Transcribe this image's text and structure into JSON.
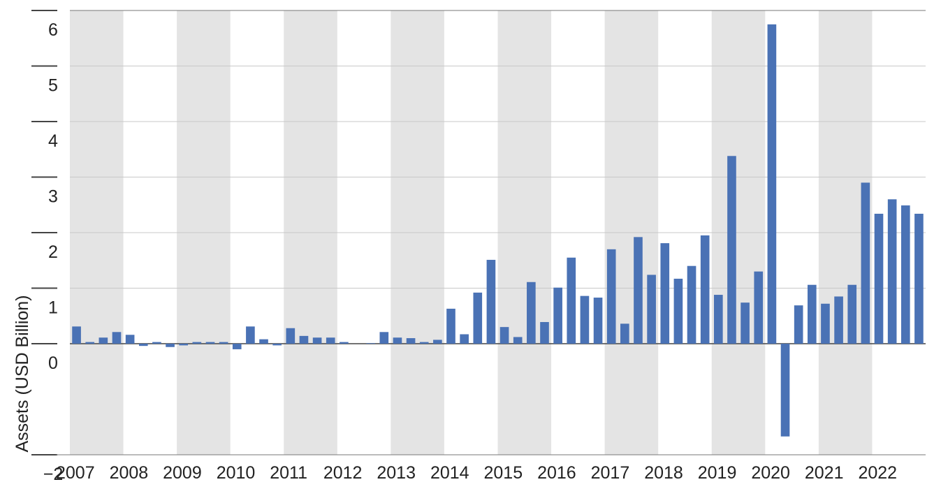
{
  "chart_data": {
    "type": "bar",
    "y_label": "Assets (USD Billion)",
    "categories": [
      "2007",
      null,
      null,
      null,
      "2008",
      null,
      null,
      null,
      "2009",
      null,
      null,
      null,
      "2010",
      null,
      null,
      null,
      "2011",
      null,
      null,
      null,
      "2012",
      null,
      null,
      null,
      "2013",
      null,
      null,
      null,
      "2014",
      null,
      null,
      null,
      "2015",
      null,
      null,
      null,
      "2016",
      null,
      null,
      null,
      "2017",
      null,
      null,
      null,
      "2018",
      null,
      null,
      null,
      "2019",
      null,
      null,
      null,
      "2020",
      null,
      null,
      null,
      "2021",
      null,
      null,
      null,
      "2022",
      null,
      null,
      null
    ],
    "values": [
      0.31,
      0.03,
      0.11,
      0.21,
      0.16,
      -0.04,
      0.03,
      -0.06,
      -0.03,
      0.03,
      0.03,
      0.03,
      -0.1,
      0.31,
      0.08,
      -0.03,
      0.28,
      0.14,
      0.11,
      0.11,
      0.03,
      0.0,
      0.01,
      0.21,
      0.11,
      0.1,
      0.03,
      0.07,
      0.63,
      0.17,
      0.92,
      1.51,
      0.3,
      0.12,
      1.11,
      0.39,
      1.01,
      1.55,
      0.86,
      0.83,
      1.7,
      0.36,
      1.92,
      1.24,
      1.81,
      1.17,
      1.4,
      1.95,
      0.88,
      3.38,
      0.74,
      1.3,
      5.75,
      -1.67,
      0.69,
      1.06,
      0.72,
      0.85,
      1.06,
      2.9,
      2.34,
      2.6,
      2.49,
      2.34
    ],
    "color": "#4a72b5",
    "ylim": [
      -2,
      6
    ],
    "yticks": [
      {
        "value": -2,
        "label": "−2"
      },
      0,
      1,
      2,
      3,
      4,
      5,
      6
    ],
    "grid": true
  }
}
